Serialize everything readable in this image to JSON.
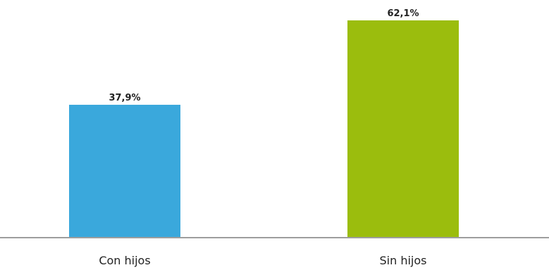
{
  "chart_data": {
    "type": "bar",
    "categories": [
      "Con hijos",
      "Sin hijos"
    ],
    "values": [
      37.9,
      62.1
    ],
    "value_labels": [
      "37,9%",
      "62,1%"
    ],
    "colors": [
      "#3aa8dc",
      "#9bbd0d"
    ],
    "title": "",
    "xlabel": "",
    "ylabel": "",
    "ylim": [
      0,
      62.1
    ],
    "grid": false,
    "legend": "none"
  }
}
